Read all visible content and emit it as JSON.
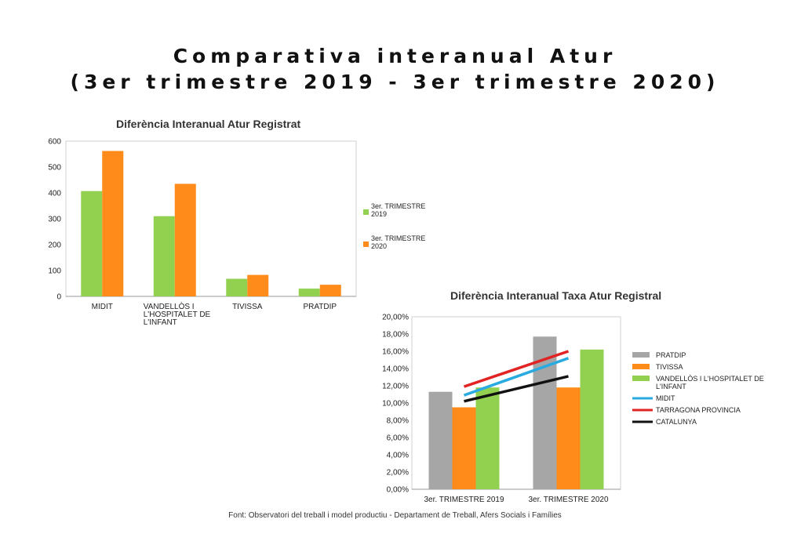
{
  "title_line1": "Comparativa interanual Atur",
  "title_line2": "(3er trimestre 2019 - 3er trimestre 2020)",
  "footer": "Font: Observatori del treball i model productiu - Departament de Treball, Afers Socials i Famílies",
  "colors": {
    "green": "#92d050",
    "orange": "#ff8c1a",
    "gray": "#a6a6a6",
    "blue": "#29abe2",
    "red": "#e02424",
    "black": "#111111"
  },
  "chart_data": [
    {
      "type": "bar",
      "title": "Diferència Interanual Atur Registrat",
      "categories": [
        [
          "MIDIT"
        ],
        [
          "VANDELLÒS I",
          "L'HOSPITALET DE",
          "L'INFANT"
        ],
        [
          "TIVISSA"
        ],
        [
          "PRATDIP"
        ]
      ],
      "series": [
        {
          "name": [
            "3er. TRIMESTRE",
            "2019"
          ],
          "color": "#92d050",
          "values": [
            407,
            310,
            68,
            30
          ]
        },
        {
          "name": [
            "3er. TRIMESTRE",
            "2020"
          ],
          "color": "#ff8c1a",
          "values": [
            562,
            435,
            83,
            45
          ]
        }
      ],
      "ylim": [
        0,
        600
      ],
      "yticks": [
        "0",
        "100",
        "200",
        "300",
        "400",
        "500",
        "600"
      ],
      "grid": false,
      "legend": "right"
    },
    {
      "type": "bar",
      "title": "Diferència Interanual Taxa Atur Registral",
      "categories": [
        "3er. TRIMESTRE 2019",
        "3er. TRIMESTRE 2020"
      ],
      "series": [
        {
          "name": [
            "PRATDIP"
          ],
          "kind": "bar",
          "color": "#a6a6a6",
          "values": [
            11.3,
            17.7
          ]
        },
        {
          "name": [
            "TIVISSA"
          ],
          "kind": "bar",
          "color": "#ff8c1a",
          "values": [
            9.5,
            11.8
          ]
        },
        {
          "name": [
            "VANDELLÒS I L'HOSPITALET DE",
            "L'INFANT"
          ],
          "kind": "bar",
          "color": "#92d050",
          "values": [
            11.8,
            16.2
          ]
        },
        {
          "name": [
            "MIDIT"
          ],
          "kind": "line",
          "color": "#29abe2",
          "values": [
            10.9,
            15.2
          ]
        },
        {
          "name": [
            "TARRAGONA PROVINCIA"
          ],
          "kind": "line",
          "color": "#e02424",
          "values": [
            11.9,
            16.0
          ]
        },
        {
          "name": [
            "CATALUNYA"
          ],
          "kind": "line",
          "color": "#111111",
          "values": [
            10.2,
            13.1
          ]
        }
      ],
      "ylim": [
        0,
        20
      ],
      "yticks": [
        "0,00%",
        "2,00%",
        "4,00%",
        "6,00%",
        "8,00%",
        "10,00%",
        "12,00%",
        "14,00%",
        "16,00%",
        "18,00%",
        "20,00%"
      ],
      "grid": false,
      "legend": "right"
    }
  ]
}
